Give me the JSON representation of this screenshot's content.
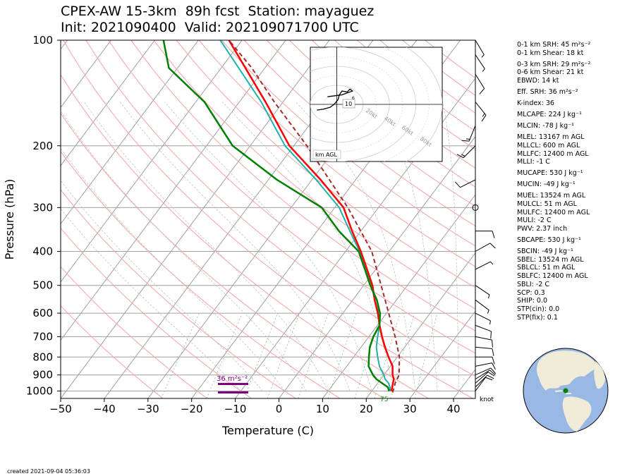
{
  "title": {
    "line1": "CPEX-AW 15-3km  89h fcst  Station: mayaguez",
    "line2": "Init: 2021090400  Valid: 202109071700 UTC"
  },
  "footer": {
    "created": "created 2021-09-04 05:36:03"
  },
  "barb_unit_label": "knot",
  "hodograph": {
    "agl_label": "km AGL",
    "ring_labels": [
      "20kt",
      "40kt",
      "60kt",
      "80kt"
    ],
    "height_labels": [
      "10",
      "6"
    ]
  },
  "srh_annotation": "36 m²s⁻²",
  "lcl_marker_label": "75",
  "indices": [
    "0-1 km SRH: 45 m²s⁻²",
    "0-1 km Shear: 18 kt",
    "0-3 km SRH: 29 m²s⁻²",
    "0-6 km Shear: 21 kt",
    "EBWD: 14 kt",
    "Eff. SRH: 36 m²s⁻²",
    "K-index: 36",
    "MLCAPE: 224 J kg⁻¹",
    "MLCIN: -78 J kg⁻¹",
    "MLEL: 13167 m AGL",
    "MLLCL: 600 m AGL",
    "MLLFC: 12400 m AGL",
    "MLLI: -1 C",
    "MUCAPE: 530 J kg⁻¹",
    "MUCIN: -49 J kg⁻¹",
    "MUEL: 13524 m AGL",
    "MULCL: 51 m AGL",
    "MULFC: 12400 m AGL",
    "MULI: -2 C",
    "PWV: 2.37 inch",
    "SBCAPE: 530 J kg⁻¹",
    "SBCIN: -49 J kg⁻¹",
    "SBEL: 13524 m AGL",
    "SBLCL: 51 m AGL",
    "SBLFC: 12400 m AGL",
    "SBLI: -2 C",
    "SCP: 0.3",
    "SHIP: 0.0",
    "STP(cin): 0.0",
    "STP(fix): 0.1"
  ],
  "colors": {
    "temperature": "#ff0000",
    "dewpoint": "#008000",
    "wetbulb": "#20b2aa",
    "parcel": "#a52a2a",
    "isobar": "#a0a0a0",
    "isotherm": "#a0a0a0",
    "dry_adiabat": "#f4a3a3",
    "moist_adiabat": "#bbbbbb",
    "mixing_ratio": "#8fbc8f",
    "srh_bar": "#800080",
    "globe_ocean": "#99b8e4",
    "globe_land": "#f0ecd8"
  },
  "chart_data": {
    "type": "skew-t",
    "xlabel": "Temperature (C)",
    "ylabel": "Pressure (hPa)",
    "xlim": [
      -50,
      45
    ],
    "ylim": [
      1050,
      100
    ],
    "y_scale": "log",
    "x_ticks": [
      -50,
      -40,
      -30,
      -20,
      -10,
      0,
      10,
      20,
      30,
      40
    ],
    "y_ticks": [
      100,
      200,
      300,
      400,
      500,
      600,
      700,
      800,
      900,
      1000
    ],
    "grid": true,
    "series": [
      {
        "name": "",
        "role": "temperature",
        "points": [
          [
            1000,
            24.5
          ],
          [
            975,
            24
          ],
          [
            950,
            23.5
          ],
          [
            925,
            23
          ],
          [
            900,
            22
          ],
          [
            850,
            20.5
          ],
          [
            800,
            18
          ],
          [
            750,
            15.5
          ],
          [
            700,
            13
          ],
          [
            650,
            10.5
          ],
          [
            600,
            8
          ],
          [
            550,
            5
          ],
          [
            500,
            2
          ],
          [
            450,
            -2
          ],
          [
            400,
            -6.5
          ],
          [
            350,
            -12
          ],
          [
            300,
            -18
          ],
          [
            250,
            -28
          ],
          [
            200,
            -41
          ],
          [
            150,
            -54
          ],
          [
            100,
            -73
          ]
        ]
      },
      {
        "name": "",
        "role": "dewpoint",
        "points": [
          [
            1000,
            24
          ],
          [
            975,
            23
          ],
          [
            950,
            21
          ],
          [
            925,
            19
          ],
          [
            900,
            17.5
          ],
          [
            850,
            15
          ],
          [
            800,
            13.5
          ],
          [
            750,
            12
          ],
          [
            700,
            11
          ],
          [
            650,
            10.5
          ],
          [
            600,
            8.5
          ],
          [
            550,
            5.5
          ],
          [
            500,
            1.5
          ],
          [
            450,
            -2.5
          ],
          [
            400,
            -7
          ],
          [
            350,
            -15
          ],
          [
            300,
            -23
          ],
          [
            250,
            -38
          ],
          [
            200,
            -54
          ],
          [
            150,
            -68
          ],
          [
            120,
            -82
          ],
          [
            100,
            -88
          ]
        ]
      },
      {
        "name": "",
        "role": "wetbulb",
        "points": [
          [
            1000,
            24.2
          ],
          [
            975,
            23.5
          ],
          [
            950,
            22.5
          ],
          [
            925,
            21
          ],
          [
            900,
            20
          ],
          [
            850,
            17.5
          ],
          [
            800,
            15.5
          ],
          [
            750,
            13.5
          ],
          [
            700,
            12
          ],
          [
            650,
            10.5
          ],
          [
            600,
            8.2
          ],
          [
            550,
            5
          ],
          [
            500,
            1.8
          ],
          [
            450,
            -2.2
          ],
          [
            400,
            -6.8
          ],
          [
            350,
            -12.5
          ],
          [
            300,
            -19
          ],
          [
            250,
            -29
          ],
          [
            200,
            -42
          ],
          [
            150,
            -55
          ],
          [
            100,
            -75
          ]
        ]
      },
      {
        "name": "",
        "role": "parcel",
        "points": [
          [
            1010,
            25
          ],
          [
            975,
            24.5
          ],
          [
            950,
            24
          ],
          [
            900,
            23.5
          ],
          [
            850,
            22
          ],
          [
            800,
            20.5
          ],
          [
            700,
            16
          ],
          [
            600,
            10.5
          ],
          [
            500,
            4
          ],
          [
            400,
            -4
          ],
          [
            300,
            -17
          ],
          [
            250,
            -26
          ],
          [
            200,
            -37
          ],
          [
            150,
            -52
          ],
          [
            120,
            -63
          ],
          [
            100,
            -73
          ]
        ]
      }
    ],
    "wind_barbs": [
      {
        "p": 1000,
        "u": -6,
        "v": -8
      },
      {
        "p": 975,
        "u": -7,
        "v": -7
      },
      {
        "p": 950,
        "u": -8,
        "v": -7
      },
      {
        "p": 925,
        "u": -8,
        "v": -5
      },
      {
        "p": 900,
        "u": -9,
        "v": -4
      },
      {
        "p": 850,
        "u": -10,
        "v": -2
      },
      {
        "p": 800,
        "u": -11,
        "v": 0
      },
      {
        "p": 750,
        "u": -11,
        "v": 1
      },
      {
        "p": 700,
        "u": -10,
        "v": 2
      },
      {
        "p": 650,
        "u": -8,
        "v": 3
      },
      {
        "p": 600,
        "u": -6,
        "v": 3
      },
      {
        "p": 550,
        "u": -4,
        "v": 3
      },
      {
        "p": 500,
        "u": -3,
        "v": 2
      },
      {
        "p": 450,
        "u": -6,
        "v": -3
      },
      {
        "p": 400,
        "u": -9,
        "v": -5
      },
      {
        "p": 350,
        "u": -8,
        "v": 0
      },
      {
        "p": 300,
        "u": 0,
        "v": 0
      },
      {
        "p": 250,
        "u": 10,
        "v": 5
      },
      {
        "p": 200,
        "u": 12,
        "v": 12
      },
      {
        "p": 175,
        "u": 6,
        "v": 15
      },
      {
        "p": 150,
        "u": -8,
        "v": 10
      },
      {
        "p": 125,
        "u": -5,
        "v": 8
      },
      {
        "p": 110,
        "u": -4,
        "v": 6
      },
      {
        "p": 100,
        "u": -3,
        "v": 5
      }
    ],
    "hodograph": {
      "xlim": [
        -20,
        80
      ],
      "ylim": [
        -60,
        60
      ],
      "rings_kt": [
        10,
        20,
        30,
        40,
        50,
        60,
        70,
        80
      ],
      "points": [
        [
          -15,
          -6
        ],
        [
          -10,
          -5
        ],
        [
          -5,
          -3
        ],
        [
          -2,
          0
        ],
        [
          1,
          5
        ],
        [
          2,
          10
        ],
        [
          4,
          14
        ],
        [
          8,
          13
        ],
        [
          10,
          16
        ],
        [
          12,
          14
        ],
        [
          4,
          10
        ],
        [
          -7,
          8
        ]
      ]
    }
  }
}
